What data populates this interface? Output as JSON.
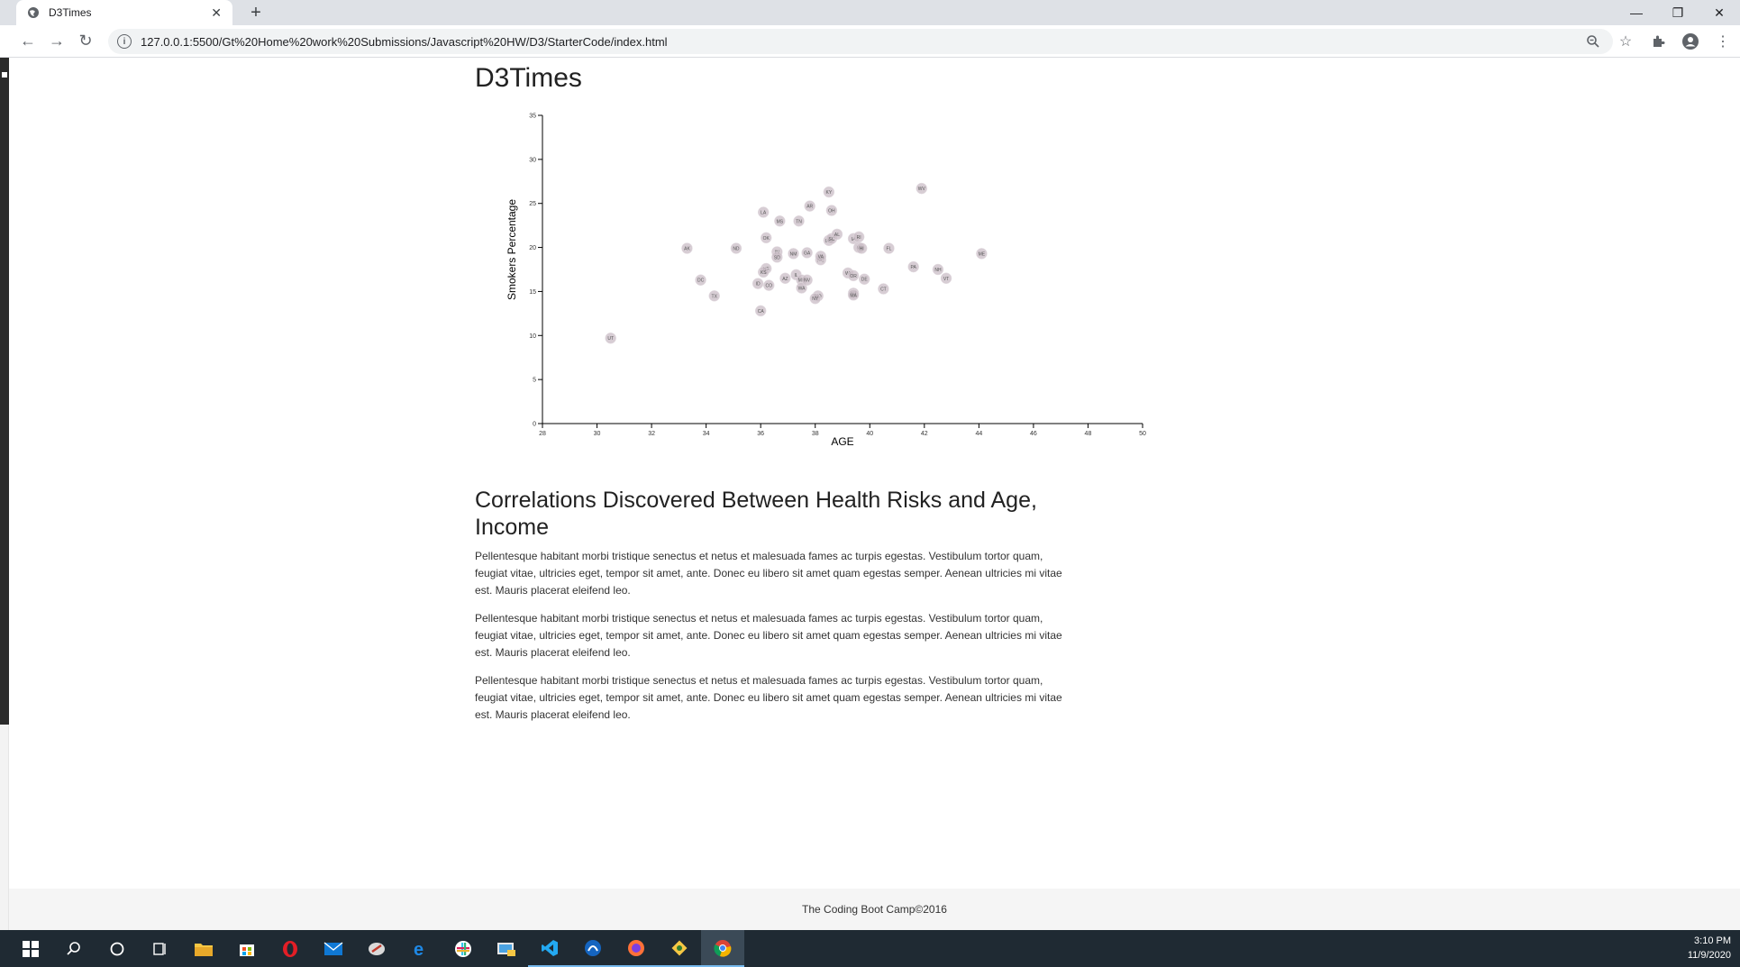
{
  "browser": {
    "tab_title": "D3Times",
    "url": "127.0.0.1:5500/Gt%20Home%20work%20Submissions/Javascript%20HW/D3/StarterCode/index.html",
    "new_tab": "+",
    "tab_close": "✕"
  },
  "page": {
    "title": "D3Times",
    "article_title": "Correlations Discovered Between Health Risks and Age, Income",
    "paragraphs": [
      "Pellentesque habitant morbi tristique senectus et netus et malesuada fames ac turpis egestas. Vestibulum tortor quam, feugiat vitae, ultricies eget, tempor sit amet, ante. Donec eu libero sit amet quam egestas semper. Aenean ultricies mi vitae est. Mauris placerat eleifend leo.",
      "Pellentesque habitant morbi tristique senectus et netus et malesuada fames ac turpis egestas. Vestibulum tortor quam, feugiat vitae, ultricies eget, tempor sit amet, ante. Donec eu libero sit amet quam egestas semper. Aenean ultricies mi vitae est. Mauris placerat eleifend leo.",
      "Pellentesque habitant morbi tristique senectus et netus et malesuada fames ac turpis egestas. Vestibulum tortor quam, feugiat vitae, ultricies eget, tempor sit amet, ante. Donec eu libero sit amet quam egestas semper. Aenean ultricies mi vitae est. Mauris placerat eleifend leo."
    ],
    "footer": "The Coding Boot Camp©2016"
  },
  "taskbar": {
    "time": "3:10 PM",
    "date": "11/9/2020"
  },
  "chart_data": {
    "type": "scatter",
    "xlabel": "AGE",
    "ylabel": "Smokers Percentage",
    "xlim": [
      28,
      50
    ],
    "ylim": [
      0,
      35
    ],
    "xticks": [
      28,
      30,
      32,
      34,
      36,
      38,
      40,
      42,
      44,
      46,
      48,
      50
    ],
    "yticks": [
      0,
      5,
      10,
      15,
      20,
      25,
      30,
      35
    ],
    "point_color": "#c9bcc6",
    "points": [
      {
        "label": "UT",
        "x": 30.5,
        "y": 9.7
      },
      {
        "label": "AK",
        "x": 33.3,
        "y": 19.9
      },
      {
        "label": "DC",
        "x": 33.8,
        "y": 16.3
      },
      {
        "label": "TX",
        "x": 34.3,
        "y": 14.5
      },
      {
        "label": "ND",
        "x": 35.1,
        "y": 19.9
      },
      {
        "label": "CA",
        "x": 36.0,
        "y": 12.8
      },
      {
        "label": "ID",
        "x": 35.9,
        "y": 15.9
      },
      {
        "label": "LA",
        "x": 36.1,
        "y": 24.0
      },
      {
        "label": "OK",
        "x": 36.2,
        "y": 21.1
      },
      {
        "label": "NE",
        "x": 36.2,
        "y": 17.6
      },
      {
        "label": "KS",
        "x": 36.1,
        "y": 17.2
      },
      {
        "label": "CO",
        "x": 36.3,
        "y": 15.7
      },
      {
        "label": "MS",
        "x": 36.7,
        "y": 23.0
      },
      {
        "label": "IN",
        "x": 36.6,
        "y": 19.5
      },
      {
        "label": "SD",
        "x": 36.6,
        "y": 18.9
      },
      {
        "label": "AZ",
        "x": 36.9,
        "y": 16.5
      },
      {
        "label": "NM",
        "x": 37.2,
        "y": 19.3
      },
      {
        "label": "TN",
        "x": 37.4,
        "y": 23.0
      },
      {
        "label": "IL",
        "x": 37.3,
        "y": 16.9
      },
      {
        "label": "MN",
        "x": 37.5,
        "y": 16.3
      },
      {
        "label": "WA",
        "x": 37.5,
        "y": 15.4
      },
      {
        "label": "AR",
        "x": 37.8,
        "y": 24.7
      },
      {
        "label": "GA",
        "x": 37.7,
        "y": 19.4
      },
      {
        "label": "NV",
        "x": 37.7,
        "y": 16.3
      },
      {
        "label": "MD",
        "x": 38.1,
        "y": 14.5
      },
      {
        "label": "NY",
        "x": 38.0,
        "y": 14.2
      },
      {
        "label": "NC",
        "x": 38.2,
        "y": 18.6
      },
      {
        "label": "VA",
        "x": 38.2,
        "y": 19.0
      },
      {
        "label": "KY",
        "x": 38.5,
        "y": 26.3
      },
      {
        "label": "OH",
        "x": 38.6,
        "y": 24.2
      },
      {
        "label": "MO",
        "x": 38.5,
        "y": 20.8
      },
      {
        "label": "SC",
        "x": 38.6,
        "y": 21.0
      },
      {
        "label": "AL",
        "x": 38.8,
        "y": 21.5
      },
      {
        "label": "WI",
        "x": 39.2,
        "y": 17.1
      },
      {
        "label": "OR",
        "x": 39.4,
        "y": 16.8
      },
      {
        "label": "NJ",
        "x": 39.4,
        "y": 14.8
      },
      {
        "label": "MA",
        "x": 39.4,
        "y": 14.6
      },
      {
        "label": "IA",
        "x": 39.4,
        "y": 21.0
      },
      {
        "label": "MI",
        "x": 39.6,
        "y": 20.0
      },
      {
        "label": "RI",
        "x": 39.6,
        "y": 21.2
      },
      {
        "label": "HI",
        "x": 39.7,
        "y": 19.9
      },
      {
        "label": "DE",
        "x": 39.8,
        "y": 16.4
      },
      {
        "label": "CT",
        "x": 40.5,
        "y": 15.3
      },
      {
        "label": "FL",
        "x": 40.7,
        "y": 19.9
      },
      {
        "label": "PA",
        "x": 41.6,
        "y": 17.8
      },
      {
        "label": "WV",
        "x": 41.9,
        "y": 26.7
      },
      {
        "label": "NH",
        "x": 42.5,
        "y": 17.5
      },
      {
        "label": "VT",
        "x": 42.8,
        "y": 16.5
      },
      {
        "label": "ME",
        "x": 44.1,
        "y": 19.3
      }
    ]
  }
}
